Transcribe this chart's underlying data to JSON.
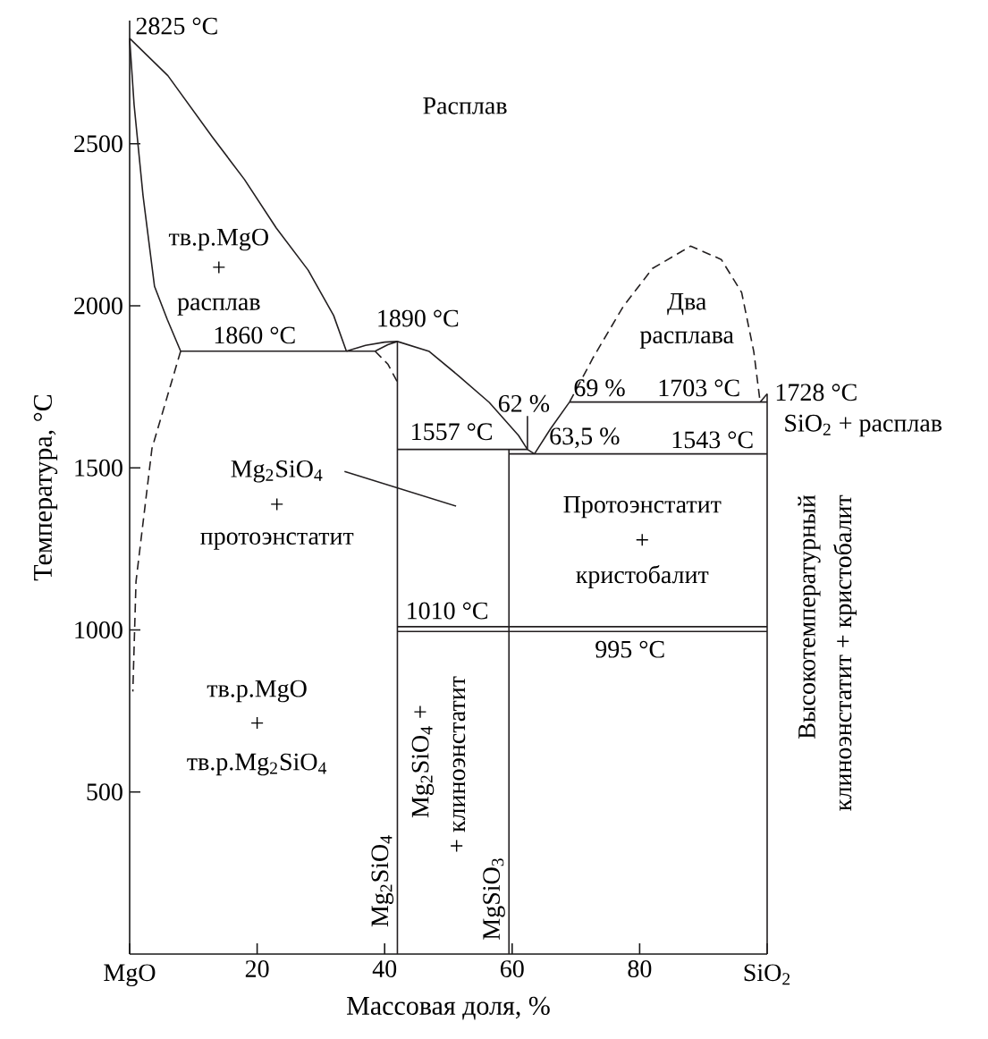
{
  "chart_data": {
    "type": "line",
    "xlabel": "Массовая доля, %",
    "ylabel": "Температура, °C",
    "xlim": [
      0,
      100
    ],
    "ylim": [
      0,
      2880
    ],
    "xticks": [
      {
        "value": 0,
        "label": null
      },
      20,
      40,
      60,
      80,
      {
        "value": 100,
        "label": null
      }
    ],
    "yticks": [
      500,
      1000,
      1500,
      2000,
      2500
    ],
    "series": [
      {
        "color": "#231f20",
        "line_style": "solid",
        "x": [
          0,
          6,
          13,
          18,
          23,
          28,
          32,
          34
        ],
        "values": [
          2825,
          2710,
          2520,
          2390,
          2240,
          2110,
          1970,
          1860
        ]
      },
      {
        "color": "#231f20",
        "line_style": "solid",
        "x": [
          0,
          0.7,
          2.1,
          3.9,
          5.9,
          8
        ],
        "values": [
          2825,
          2620,
          2340,
          2060,
          1958,
          1860
        ]
      },
      {
        "color": "#231f20",
        "line_style": "dashed",
        "x": [
          8,
          3.5,
          1,
          0.5
        ],
        "values": [
          1860,
          1560,
          1150,
          810
        ]
      },
      {
        "color": "#231f20",
        "line_style": "solid",
        "x": [
          8,
          38.5
        ],
        "values": [
          1860,
          1860
        ]
      },
      {
        "color": "#231f20",
        "line_style": "solid",
        "x": [
          34,
          37,
          40,
          42,
          47,
          51.6,
          56.4,
          61,
          62.4,
          63.5
        ],
        "values": [
          1860,
          1878,
          1888,
          1890,
          1859,
          1784,
          1702,
          1600,
          1557,
          1543
        ]
      },
      {
        "color": "#231f20",
        "line_style": "solid",
        "x": [
          38.5,
          40.5,
          42
        ],
        "values": [
          1860,
          1880,
          1890
        ]
      },
      {
        "color": "#231f20",
        "line_style": "dashed",
        "x": [
          38.5,
          40.5,
          42
        ],
        "values": [
          1860,
          1820,
          1765
        ]
      },
      {
        "color": "#231f20",
        "line_style": "solid",
        "x": [
          42,
          42
        ],
        "values": [
          0,
          1890
        ]
      },
      {
        "color": "#231f20",
        "line_style": "solid",
        "x": [
          42,
          62.4
        ],
        "values": [
          1557,
          1557
        ]
      },
      {
        "color": "#231f20",
        "line_style": "solid",
        "x": [
          62.4,
          62.4
        ],
        "values": [
          1557,
          1660
        ]
      },
      {
        "color": "#231f20",
        "line_style": "solid",
        "x": [
          59.5,
          59.5
        ],
        "values": [
          0,
          1557
        ]
      },
      {
        "color": "#231f20",
        "line_style": "solid",
        "x": [
          59.5,
          100
        ],
        "values": [
          1543,
          1543
        ]
      },
      {
        "color": "#231f20",
        "line_style": "solid",
        "x": [
          63.5,
          66,
          69
        ],
        "values": [
          1543,
          1620,
          1703
        ]
      },
      {
        "color": "#231f20",
        "line_style": "dashed",
        "x": [
          69,
          72.7,
          77.4,
          82,
          88,
          92.8,
          96,
          97.9,
          98.9
        ],
        "values": [
          1703,
          1840,
          1997,
          2115,
          2184,
          2143,
          2041,
          1859,
          1703
        ]
      },
      {
        "color": "#231f20",
        "line_style": "solid",
        "x": [
          69,
          100
        ],
        "values": [
          1703,
          1703
        ]
      },
      {
        "color": "#231f20",
        "line_style": "solid",
        "x": [
          98.9,
          100
        ],
        "values": [
          1703,
          1728
        ]
      },
      {
        "color": "#231f20",
        "line_style": "solid",
        "x": [
          100,
          100
        ],
        "values": [
          0,
          1728
        ]
      },
      {
        "color": "#231f20",
        "line_style": "solid",
        "x": [
          42,
          100
        ],
        "values": [
          1010,
          1010
        ]
      },
      {
        "color": "#231f20",
        "line_style": "solid",
        "x": [
          42,
          100
        ],
        "values": [
          995,
          995
        ]
      },
      {
        "color": "#231f20",
        "line_style": "solid",
        "x": [
          33.7,
          51.2
        ],
        "values": [
          1489,
          1382
        ]
      }
    ],
    "annotations": [
      {
        "text": "2825 °C",
        "x": 0,
        "y": 2825
      },
      "Расплав",
      "тв.р.MgO",
      "+",
      "расплав",
      {
        "text": "1860 °C",
        "x": 19.6,
        "y": 1860
      },
      {
        "text": "1890 °C",
        "x": 42,
        "y": 1890
      },
      "Два",
      "расплава",
      {
        "text": "1728 °C",
        "x": 100,
        "y": 1728
      },
      {
        "text": "62 %",
        "x": 62.4,
        "y": 1660
      },
      {
        "text": "69 %",
        "x": 69,
        "y": 1703
      },
      {
        "text": "1703 °C",
        "x": 89.3,
        "y": 1703
      },
      {
        "text": "1557 °C",
        "x": 50.5,
        "y": 1557
      },
      "SiO$_{2}$ + расплав",
      {
        "text": "63,5 %",
        "x": 63.5,
        "y": 1543
      },
      {
        "text": "1543 °C",
        "x": 91.4,
        "y": 1543
      },
      "Mg$_{2}$SiO$_{4}$",
      "+",
      "протоэнстатит",
      "Протоэнстатит",
      "+",
      "кристобалит",
      {
        "text": "1010 °C",
        "x": 49.8,
        "y": 1010
      },
      {
        "text": "995 °C",
        "x": 78.5,
        "y": 995
      },
      "тв.р.MgO",
      "+",
      "тв.р.Mg$_{2}$SiO$_{4}$",
      {
        "text": "Mg$_{2}$SiO$_{4}$",
        "x": 42,
        "y": 226
      },
      "Mg$_{2}$SiO$_{4}$ +",
      "+ клиноэнстатит",
      {
        "text": "MgSiO$_{3}$",
        "x": 59.5,
        "y": 171
      },
      "Высокотемпературный",
      "клиноэнстатит + кристобалит",
      "MgO",
      "SiO$_{2}$"
    ]
  }
}
